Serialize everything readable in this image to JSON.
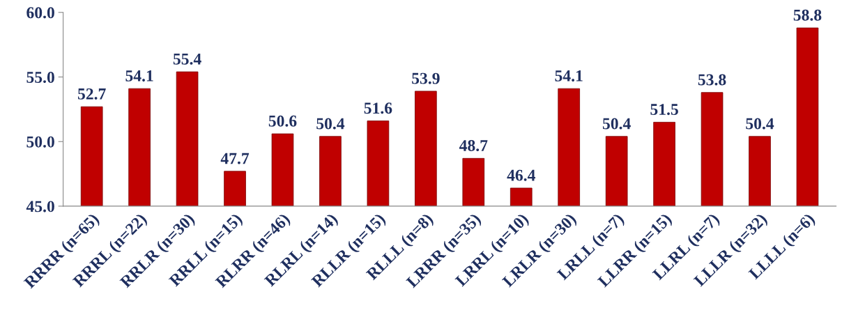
{
  "chart_data": {
    "type": "bar",
    "categories": [
      "RRRR (n=65)",
      "RRRL (n=22)",
      "RRLR (n=30)",
      "RRLL (n=15)",
      "RLRR (n=46)",
      "RLRL (n=14)",
      "RLLR (n=15)",
      "RLLL (n=8)",
      "LRRR (n=35)",
      "LRRL (n=10)",
      "LRLR (n=30)",
      "LRLL (n=7)",
      "LLRR (n=15)",
      "LLRL (n=7)",
      "LLLR (n=32)",
      "LLLL (n=6)"
    ],
    "values": [
      52.7,
      54.1,
      55.4,
      47.7,
      50.6,
      50.4,
      51.6,
      53.9,
      48.7,
      46.4,
      54.1,
      50.4,
      51.5,
      53.8,
      50.4,
      58.8
    ],
    "color": "#c00000",
    "ylim": [
      45,
      60
    ],
    "yticks": [
      {
        "value": 45,
        "label": "45.0"
      },
      {
        "value": 50,
        "label": "50.0"
      },
      {
        "value": 55,
        "label": "55.0"
      },
      {
        "value": 60,
        "label": "60.0"
      }
    ],
    "data_labels": true,
    "grid": false,
    "legend": false
  }
}
